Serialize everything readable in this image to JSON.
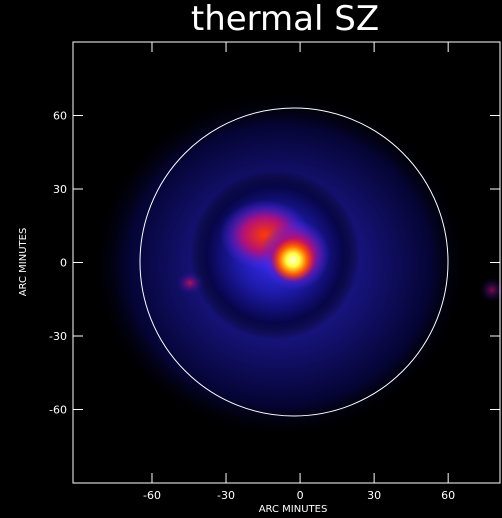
{
  "chart_data": {
    "type": "image",
    "title": "thermal SZ",
    "x_label": "ARC MINUTES",
    "y_label": "ARC MINUTES",
    "xlim": [
      -92,
      81
    ],
    "ylim": [
      -90,
      90
    ],
    "xticks": [
      -60,
      -30,
      0,
      30,
      60
    ],
    "yticks": [
      -60,
      -30,
      0,
      30,
      60
    ]
  }
}
